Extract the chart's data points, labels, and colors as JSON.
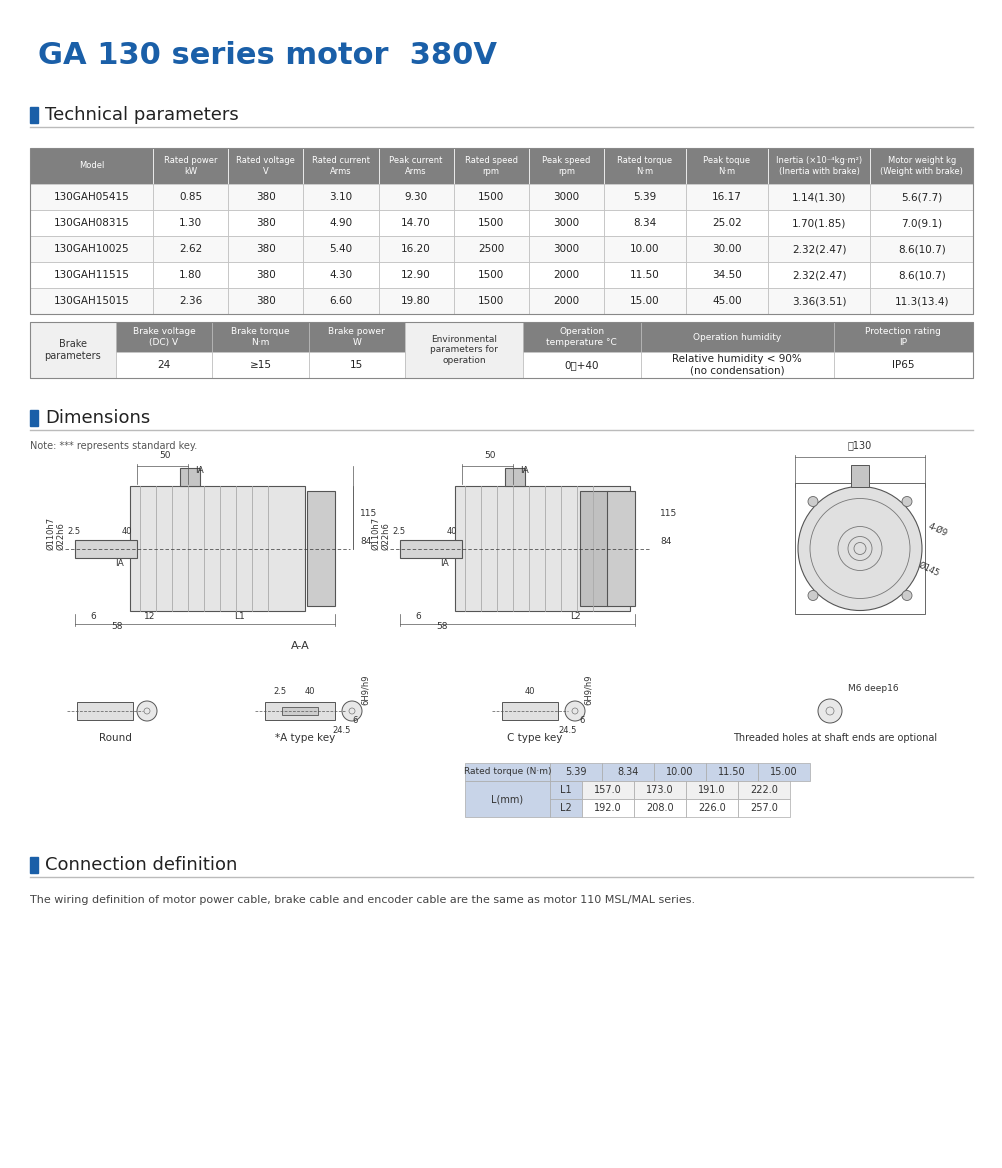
{
  "title": "GA 130 series motor  380V",
  "title_color": "#1a5fa8",
  "section1": "Technical parameters",
  "section2": "Dimensions",
  "section3": "Connection definition",
  "accent_color": "#1a5fa8",
  "tech_headers": [
    "Model",
    "Rated power\nkW",
    "Rated voltage\nV",
    "Rated current\nArms",
    "Peak current\nArms",
    "Rated speed\nrpm",
    "Peak speed\nrpm",
    "Rated torque\nN·m",
    "Peak toque\nN·m",
    "Inertia (×10⁻⁴kg·m²)\n(Inertia with brake)",
    "Motor weight kg\n(Weight with brake)"
  ],
  "tech_data": [
    [
      "130GAH05415",
      "0.85",
      "380",
      "3.10",
      "9.30",
      "1500",
      "3000",
      "5.39",
      "16.17",
      "1.14(1.30)",
      "5.6(7.7)"
    ],
    [
      "130GAH08315",
      "1.30",
      "380",
      "4.90",
      "14.70",
      "1500",
      "3000",
      "8.34",
      "25.02",
      "1.70(1.85)",
      "7.0(9.1)"
    ],
    [
      "130GAH10025",
      "2.62",
      "380",
      "5.40",
      "16.20",
      "2500",
      "3000",
      "10.00",
      "30.00",
      "2.32(2.47)",
      "8.6(10.7)"
    ],
    [
      "130GAH11515",
      "1.80",
      "380",
      "4.30",
      "12.90",
      "1500",
      "2000",
      "11.50",
      "34.50",
      "2.32(2.47)",
      "8.6(10.7)"
    ],
    [
      "130GAH15015",
      "2.36",
      "380",
      "6.60",
      "19.80",
      "1500",
      "2000",
      "15.00",
      "45.00",
      "3.36(3.51)",
      "11.3(13.4)"
    ]
  ],
  "brake_headers": [
    "",
    "Brake voltage\n(DC) V",
    "Brake torque\nN·m",
    "Brake power\nW",
    "Environmental\nparameters for\noperation",
    "Operation\ntemperature °C",
    "Operation humidity",
    "Protection rating\nIP"
  ],
  "brake_data": [
    "24",
    "≥15",
    "15",
    "0～+40",
    "Relative humidity < 90%\n(no condensation)",
    "IP65"
  ],
  "note_text": "Note: *** represents standard key.",
  "torque_vals": [
    "5.39",
    "8.34",
    "10.00",
    "11.50",
    "15.00"
  ],
  "l1_vals": [
    "157.0",
    "173.0",
    "191.0",
    "222.0"
  ],
  "l2_vals": [
    "192.0",
    "208.0",
    "226.0",
    "257.0"
  ],
  "connection_text": "The wiring definition of motor power cable, brake cable and encoder cable are the same as motor 110 MSL/MAL series.",
  "bg_color": "#ffffff"
}
